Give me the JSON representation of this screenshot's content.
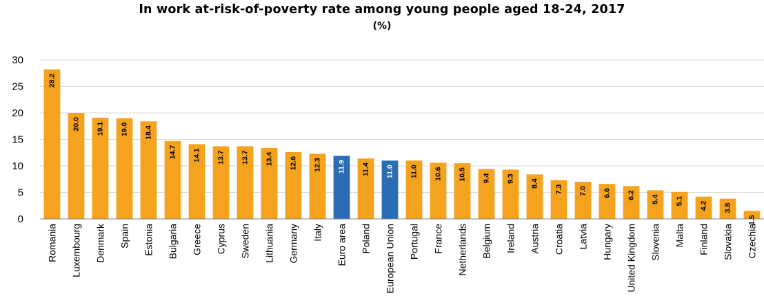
{
  "chart_data": {
    "type": "bar",
    "title": "In work at-risk-of-poverty rate among young people aged 18-24, 2017",
    "subtitle": "(%)",
    "xlabel": "",
    "ylabel": "",
    "ylim": [
      0,
      30
    ],
    "yticks": [
      0,
      5,
      10,
      15,
      20,
      25,
      30
    ],
    "grid": true,
    "legend": "none",
    "categories": [
      "Romania",
      "Luxembourg",
      "Denmark",
      "Spain",
      "Estonia",
      "Bulgaria",
      "Greece",
      "Cyprus",
      "Sweden",
      "Lithuania",
      "Germany",
      "Italy",
      "Euro area",
      "Poland",
      "European Union",
      "Portugal",
      "France",
      "Netherlands",
      "Belgium",
      "Ireland",
      "Austria",
      "Croatia",
      "Latvia",
      "Hungary",
      "United Kingdom",
      "Slovenia",
      "Malta",
      "Finland",
      "Slovakia",
      "Czechia"
    ],
    "values": [
      28.2,
      20.0,
      19.1,
      19.0,
      18.4,
      14.7,
      14.1,
      13.7,
      13.7,
      13.4,
      12.6,
      12.3,
      11.9,
      11.4,
      11.0,
      11.0,
      10.6,
      10.5,
      9.4,
      9.3,
      8.4,
      7.3,
      7.0,
      6.6,
      6.2,
      5.4,
      5.1,
      4.2,
      3.8,
      1.5
    ],
    "value_labels": [
      "28.2",
      "20.0",
      "19.1",
      "19.0",
      "18.4",
      "14.7",
      "14.1",
      "13.7",
      "13.7",
      "13.4",
      "12.6",
      "12.3",
      "11.9",
      "11.4",
      "11.0",
      "11.0",
      "10.6",
      "10.5",
      "9.4",
      "9.3",
      "8.4",
      "7.3",
      "7.0",
      "6.6",
      "6.2",
      "5.4",
      "5.1",
      "4.2",
      "3.8",
      "1.5"
    ],
    "highlighted": [
      "Euro area",
      "European Union"
    ],
    "colors": {
      "default_bar": "#F5A21E",
      "highlight_bar": "#2A6DB5",
      "grid": "#D9D9D9",
      "axis": "#808080"
    }
  }
}
